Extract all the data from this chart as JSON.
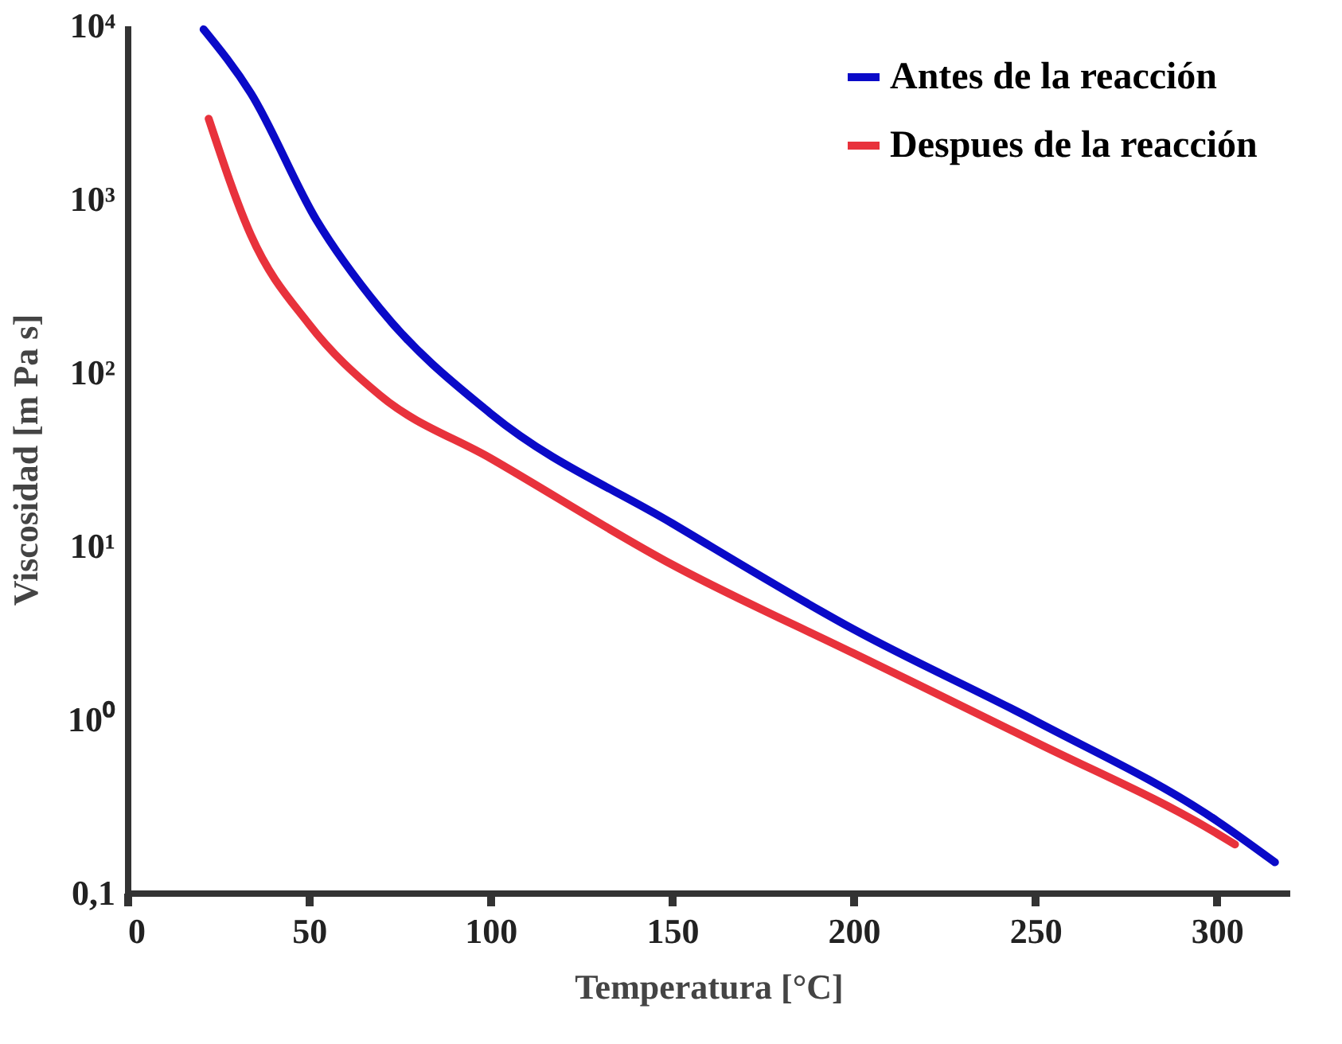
{
  "chart_data": {
    "type": "line",
    "xlabel": "Temperatura [°C]",
    "ylabel": "Viscosidad [m Pa s]",
    "log": "y",
    "grid": false,
    "legend": "top right",
    "marker": "none",
    "line_style": "solid",
    "xlim": [
      0,
      320
    ],
    "xticks": [
      0,
      50,
      100,
      150,
      200,
      250,
      300
    ],
    "ylim": [
      0.1,
      10000
    ],
    "yticks": [
      {
        "value": 0.1,
        "label": "0,1"
      },
      {
        "value": 1,
        "label": "10⁰"
      },
      {
        "value": 10,
        "label": "10¹"
      },
      {
        "value": 100,
        "label": "10²"
      },
      {
        "value": 1000,
        "label": "10³"
      },
      {
        "value": 10000,
        "label": "10⁴"
      }
    ],
    "series": [
      {
        "name": "Antes de la reacción",
        "color": "#0a0ac8",
        "x": [
          21,
          34,
          52,
          69.5,
          100,
          150,
          200,
          250,
          300,
          316
        ],
        "values": [
          9500,
          4070,
          760,
          234,
          58,
          13.5,
          3.3,
          0.98,
          0.26,
          0.15
        ]
      },
      {
        "name": "Despues de la reacción",
        "color": "#e8323c",
        "x": [
          22.4,
          34,
          50,
          69.5,
          100,
          150,
          200,
          250,
          300,
          305
        ],
        "values": [
          2900,
          620,
          190,
          74,
          32,
          7.8,
          2.4,
          0.74,
          0.22,
          0.19
        ]
      }
    ]
  }
}
